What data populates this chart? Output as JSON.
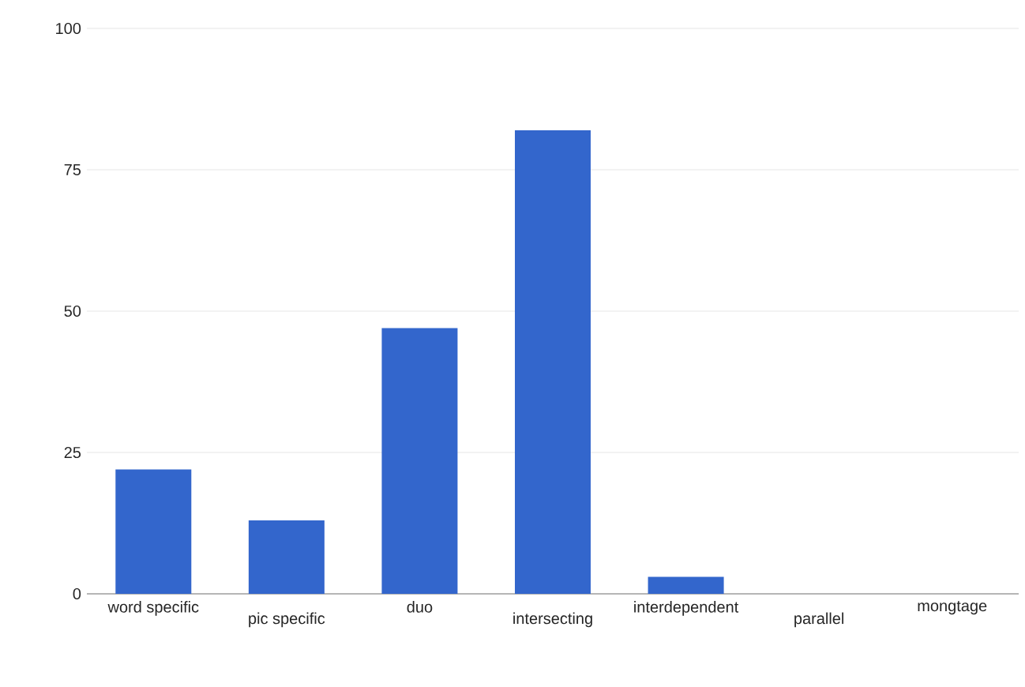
{
  "chart_data": {
    "type": "bar",
    "categories": [
      "word specific",
      "pic specific",
      "duo",
      "intersecting",
      "interdependent",
      "parallel",
      "mongtage"
    ],
    "values": [
      22,
      13,
      47,
      82,
      3,
      0,
      0
    ],
    "color": "#3366cc",
    "ylim": [
      0,
      100
    ],
    "yticks": [
      0,
      25,
      50,
      75,
      100
    ],
    "grid": "y"
  }
}
